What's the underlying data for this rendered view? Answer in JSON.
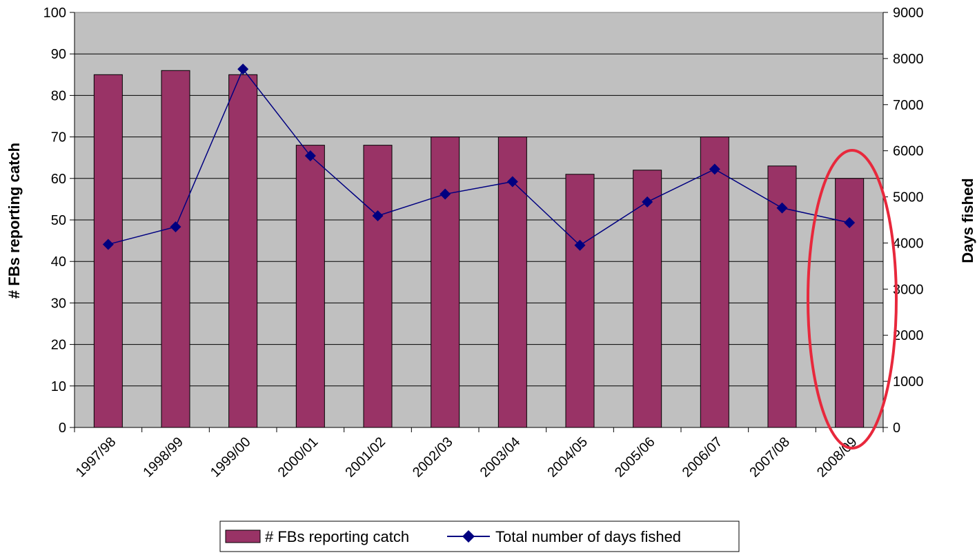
{
  "chart_data": {
    "type": "bar",
    "categories": [
      "1997/98",
      "1998/99",
      "1999/00",
      "2000/01",
      "2001/02",
      "2002/03",
      "2003/04",
      "2004/05",
      "2005/06",
      "2006/07",
      "2007/08",
      "2008/09"
    ],
    "series": [
      {
        "name": "# FBs reporting catch",
        "kind": "bar",
        "axis": "left",
        "values": [
          85,
          86,
          85,
          68,
          68,
          70,
          70,
          61,
          62,
          70,
          63,
          60
        ],
        "color": "#993366"
      },
      {
        "name": "Total number of days fished",
        "kind": "line",
        "axis": "right",
        "values": [
          3970,
          4350,
          7770,
          5890,
          4590,
          5060,
          5330,
          3950,
          4890,
          5600,
          4760,
          4440
        ],
        "color": "#000080"
      }
    ],
    "ylabel": "# FBs reporting catch",
    "y2label": "Days fished",
    "ylim": [
      0,
      100
    ],
    "y2lim": [
      0,
      9000
    ],
    "yticks": [
      "0",
      "10",
      "20",
      "30",
      "40",
      "50",
      "60",
      "70",
      "80",
      "90",
      "100"
    ],
    "y2ticks": [
      "0",
      "1000",
      "2000",
      "3000",
      "4000",
      "5000",
      "6000",
      "7000",
      "8000",
      "9000"
    ],
    "grid": true,
    "legend_position": "bottom",
    "plot_background": "#C0C0C0",
    "annotation": {
      "shape": "ellipse",
      "color": "#E8283C",
      "target_category": "2008/09"
    }
  }
}
